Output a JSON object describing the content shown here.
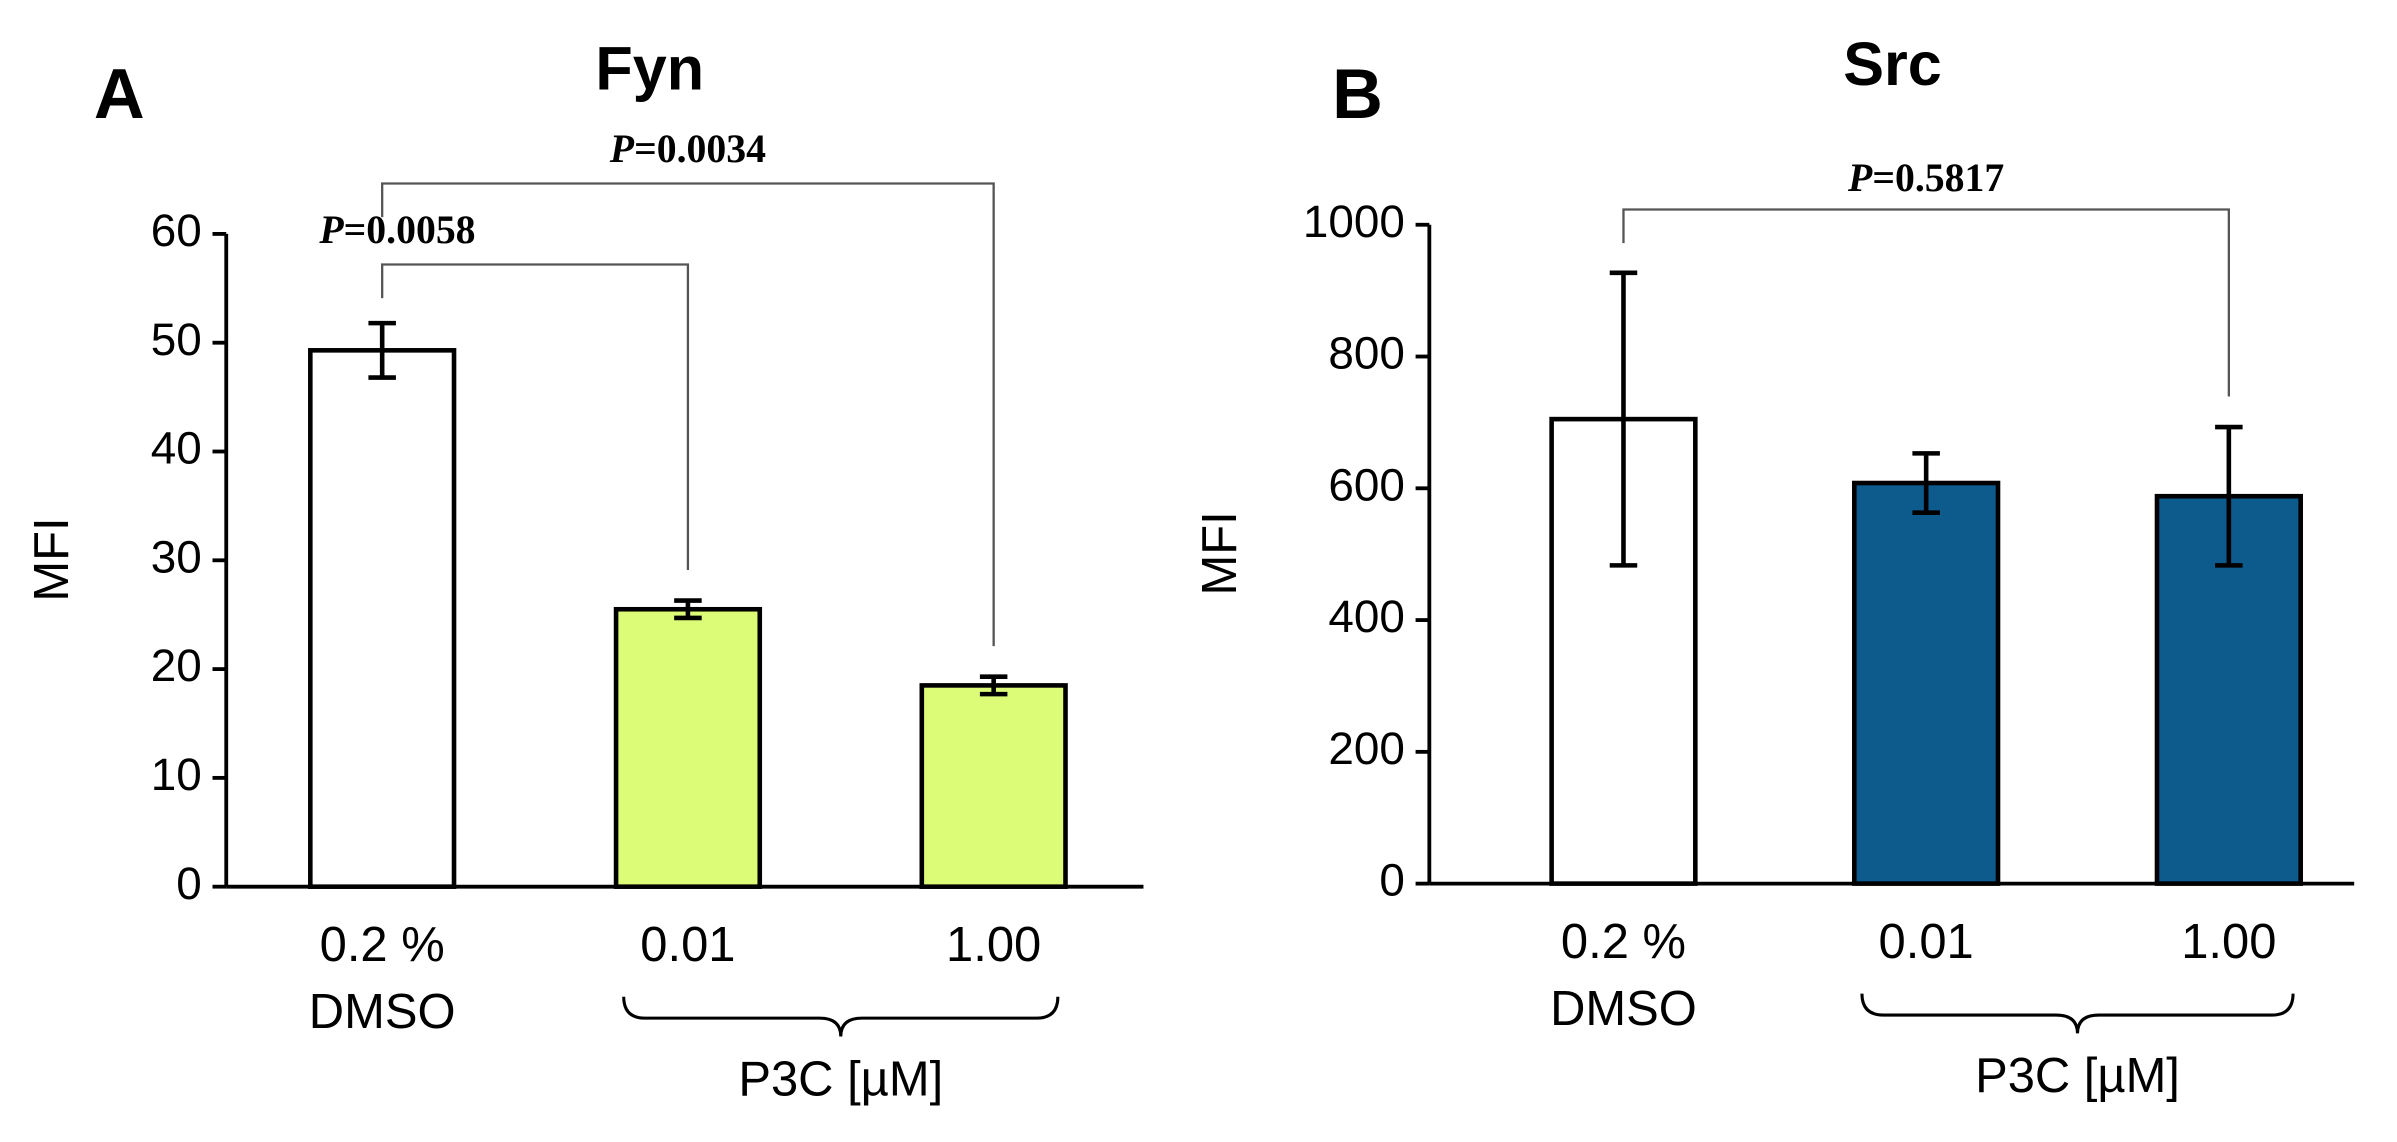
{
  "chart_data": [
    {
      "type": "bar",
      "panel": "A",
      "title": "Fyn",
      "y_label": "MFI",
      "categories": [
        "0.2 %\nDMSO",
        "0.01",
        "1.00"
      ],
      "values": [
        49.3,
        25.5,
        18.5
      ],
      "errors": [
        2.5,
        0.8,
        0.8
      ],
      "colors": [
        "#ffffff",
        "#dcfc78",
        "#dcfc78"
      ],
      "ylim": [
        0,
        60
      ],
      "yticks": [
        0,
        10,
        20,
        30,
        40,
        50,
        60
      ],
      "group_label": "P3C [µM]",
      "significance": [
        {
          "from": 0,
          "to": 1,
          "label": "P=0.0058"
        },
        {
          "from": 0,
          "to": 2,
          "label": "P=0.0034"
        }
      ]
    },
    {
      "type": "bar",
      "panel": "B",
      "title": "Src",
      "y_label": "MFI",
      "categories": [
        "0.2 %\nDMSO",
        "0.01",
        "1.00"
      ],
      "values": [
        705,
        608,
        588
      ],
      "errors": [
        222,
        45,
        105
      ],
      "colors": [
        "#ffffff",
        "#0d5a8c",
        "#0d5a8c"
      ],
      "ylim": [
        0,
        1000
      ],
      "yticks": [
        0,
        200,
        400,
        600,
        800,
        1000
      ],
      "group_label": "P3C [µM]",
      "significance": [
        {
          "from": 0,
          "to": 2,
          "label": "P=0.5817"
        }
      ]
    }
  ]
}
